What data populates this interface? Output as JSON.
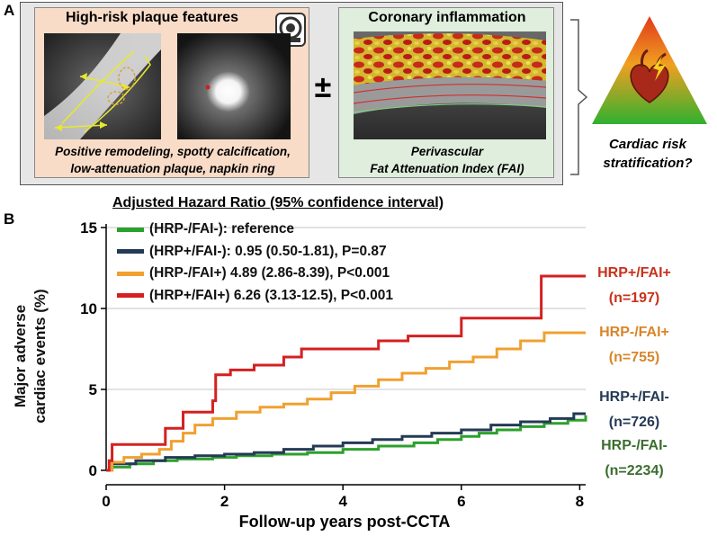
{
  "panel_a": {
    "letter": "A",
    "plaque": {
      "title": "High-risk plaque features",
      "caption_line1": "Positive remodeling, spotty calcification,",
      "caption_line2": "low-attenuation plaque, napkin ring"
    },
    "plus_minus": "±",
    "inflammation": {
      "title": "Coronary inflammation",
      "caption_line1": "Perivascular",
      "caption_line2": "Fat Attenuation Index (FAI)"
    },
    "risk": {
      "line1": "Cardiac risk",
      "line2": "stratification?"
    }
  },
  "panel_b": {
    "letter": "B"
  },
  "chart_data": {
    "type": "line",
    "title": "Adjusted Hazard Ratio (95% confidence interval)",
    "xlabel": "Follow-up years post-CCTA",
    "ylabel_line1": "Major adverse",
    "ylabel_line2": "cardiac events (%)",
    "xlim": [
      0,
      8.1
    ],
    "ylim": [
      0,
      15
    ],
    "xticks": [
      0,
      2,
      4,
      6,
      8
    ],
    "yticks": [
      0,
      5,
      10,
      15
    ],
    "grid": "horizontal",
    "legend_position": "top-left",
    "series": [
      {
        "key": "hrp_neg_fai_neg",
        "name": "(HRP-/FAI-): reference",
        "color": "#2ca02c",
        "group_label": "HRP-/FAI-",
        "group_n": "(n=2234)",
        "group_color": "#3b6e2f",
        "points": [
          [
            0,
            0
          ],
          [
            0.1,
            0.2
          ],
          [
            0.4,
            0.4
          ],
          [
            0.8,
            0.6
          ],
          [
            1.2,
            0.7
          ],
          [
            1.8,
            0.8
          ],
          [
            2.2,
            0.9
          ],
          [
            2.8,
            1.0
          ],
          [
            3.4,
            1.1
          ],
          [
            4.0,
            1.3
          ],
          [
            4.6,
            1.5
          ],
          [
            5.2,
            1.7
          ],
          [
            5.6,
            1.9
          ],
          [
            6.0,
            2.1
          ],
          [
            6.3,
            2.3
          ],
          [
            6.6,
            2.5
          ],
          [
            7.0,
            2.7
          ],
          [
            7.4,
            2.9
          ],
          [
            7.8,
            3.1
          ],
          [
            8.1,
            3.4
          ]
        ]
      },
      {
        "key": "hrp_pos_fai_neg",
        "name": "(HRP+/FAI-): 0.95 (0.50-1.81), P=0.87",
        "color": "#243a55",
        "group_label": "HRP+/FAI-",
        "group_n": "(n=726)",
        "group_color": "#243a55",
        "points": [
          [
            0,
            0
          ],
          [
            0.1,
            0.4
          ],
          [
            0.5,
            0.6
          ],
          [
            1.0,
            0.8
          ],
          [
            1.5,
            0.9
          ],
          [
            2.0,
            1.0
          ],
          [
            2.5,
            1.1
          ],
          [
            3.0,
            1.3
          ],
          [
            3.5,
            1.5
          ],
          [
            4.0,
            1.7
          ],
          [
            4.5,
            1.9
          ],
          [
            5.0,
            2.1
          ],
          [
            5.5,
            2.3
          ],
          [
            6.0,
            2.5
          ],
          [
            6.5,
            2.8
          ],
          [
            7.0,
            3.0
          ],
          [
            7.5,
            3.2
          ],
          [
            7.9,
            3.5
          ],
          [
            8.1,
            3.5
          ]
        ]
      },
      {
        "key": "hrp_neg_fai_pos",
        "name": "(HRP-/FAI+) 4.89 (2.86-8.39), P<0.001",
        "color": "#f0a030",
        "group_label": "HRP-/FAI+",
        "group_n": "(n=755)",
        "group_color": "#d9852b",
        "points": [
          [
            0,
            0
          ],
          [
            0.1,
            0.5
          ],
          [
            0.3,
            0.8
          ],
          [
            0.6,
            1.0
          ],
          [
            0.9,
            1.3
          ],
          [
            1.1,
            1.8
          ],
          [
            1.3,
            2.3
          ],
          [
            1.5,
            2.8
          ],
          [
            1.8,
            3.2
          ],
          [
            2.2,
            3.6
          ],
          [
            2.6,
            3.9
          ],
          [
            3.0,
            4.1
          ],
          [
            3.4,
            4.4
          ],
          [
            3.8,
            4.8
          ],
          [
            4.2,
            5.2
          ],
          [
            4.6,
            5.6
          ],
          [
            5.0,
            6.0
          ],
          [
            5.4,
            6.3
          ],
          [
            5.8,
            6.7
          ],
          [
            6.2,
            7.0
          ],
          [
            6.6,
            7.5
          ],
          [
            7.0,
            8.0
          ],
          [
            7.4,
            8.5
          ],
          [
            8.1,
            8.5
          ]
        ]
      },
      {
        "key": "hrp_pos_fai_pos",
        "name": "(HRP+/FAI+) 6.26 (3.13-12.5), P<0.001",
        "color": "#d42020",
        "group_label": "HRP+/FAI+",
        "group_n": "(n=197)",
        "group_color": "#c8321c",
        "points": [
          [
            0,
            0
          ],
          [
            0.05,
            0.6
          ],
          [
            0.1,
            1.6
          ],
          [
            0.6,
            1.6
          ],
          [
            1.0,
            2.6
          ],
          [
            1.3,
            3.6
          ],
          [
            1.6,
            3.6
          ],
          [
            1.8,
            4.3
          ],
          [
            1.85,
            5.9
          ],
          [
            2.0,
            5.9
          ],
          [
            2.1,
            6.2
          ],
          [
            2.5,
            6.5
          ],
          [
            3.0,
            7.0
          ],
          [
            3.3,
            7.5
          ],
          [
            4.0,
            7.5
          ],
          [
            4.6,
            8.0
          ],
          [
            5.1,
            8.3
          ],
          [
            6.0,
            8.8
          ],
          [
            6.0,
            9.4
          ],
          [
            7.3,
            9.4
          ],
          [
            7.35,
            12.0
          ],
          [
            8.1,
            12.0
          ]
        ]
      }
    ]
  }
}
